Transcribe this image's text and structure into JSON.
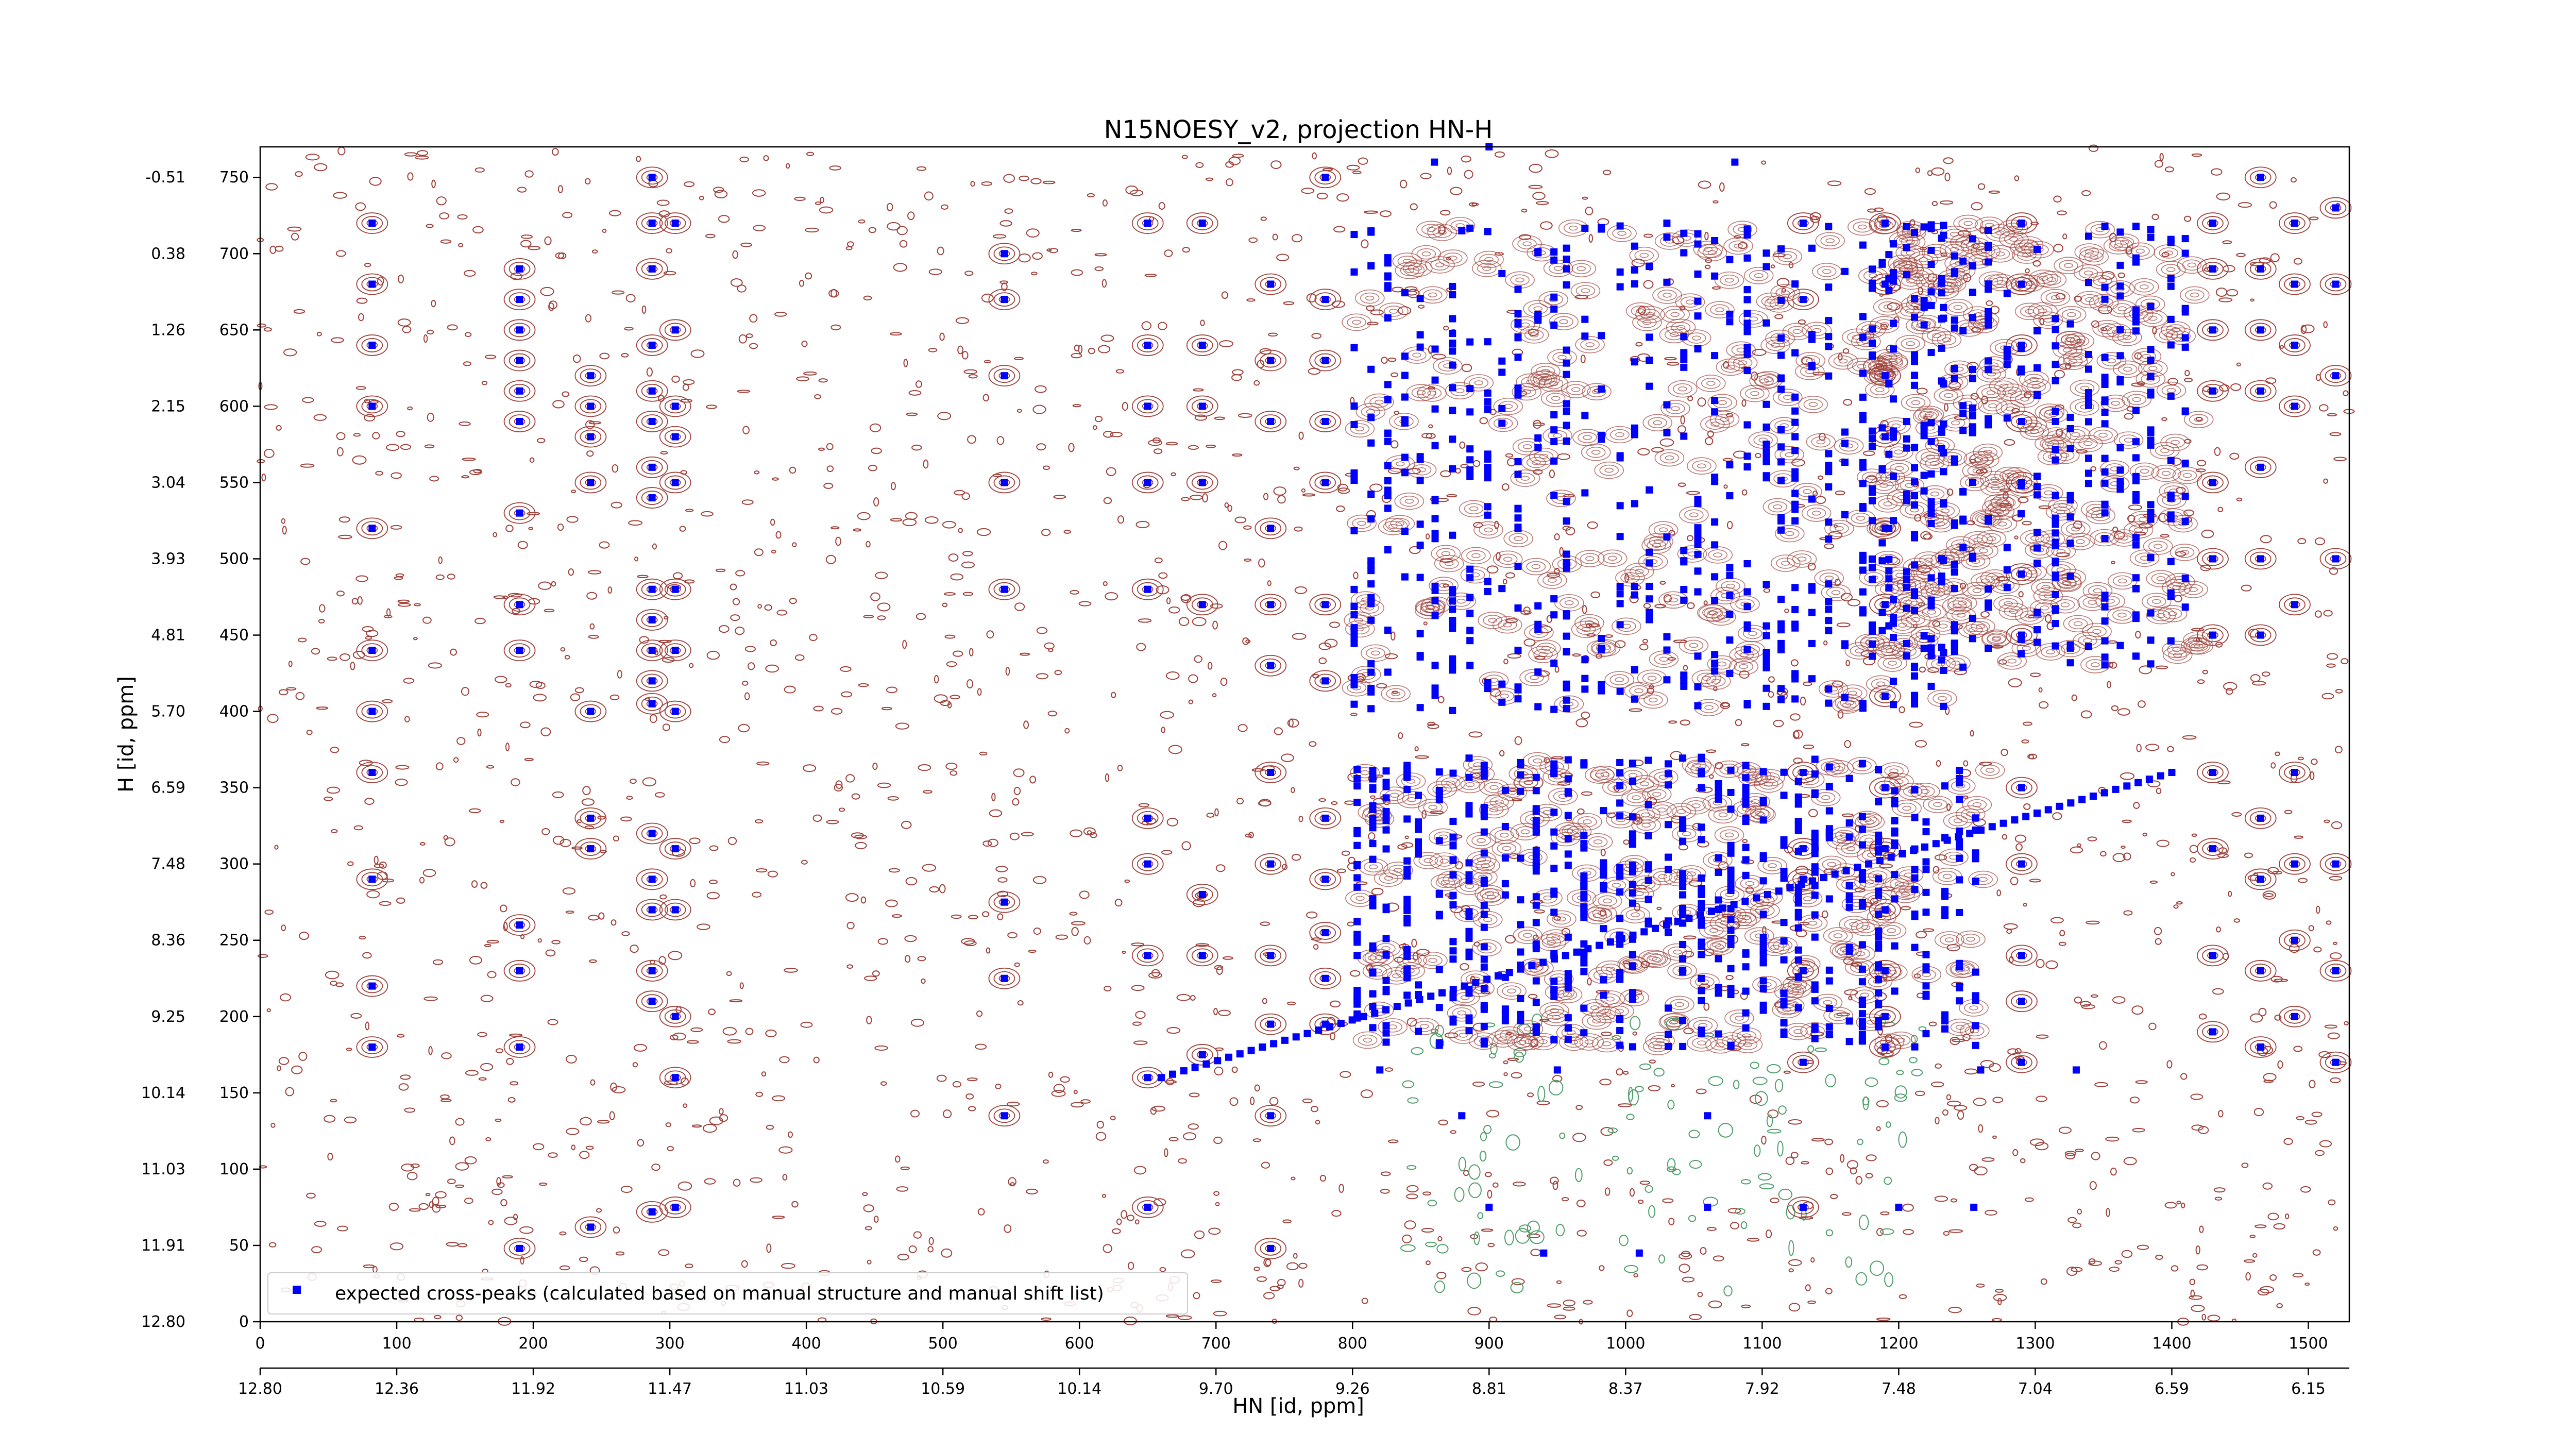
{
  "chart_data": {
    "type": "scatter",
    "title": "N15NOESY_v2, projection HN-H",
    "xlabel": "HN [id, ppm]",
    "ylabel": "H [id, ppm]",
    "xlim": [
      0,
      1530
    ],
    "ylim": [
      0,
      770
    ],
    "x_ticks_primary": [
      "0",
      "100",
      "200",
      "300",
      "400",
      "500",
      "600",
      "700",
      "800",
      "900",
      "1000",
      "1100",
      "1200",
      "1300",
      "1400",
      "1500"
    ],
    "x_ticks_ppm": [
      "12.80",
      "12.36",
      "11.92",
      "11.47",
      "11.03",
      "10.59",
      "10.14",
      "9.70",
      "9.26",
      "8.81",
      "8.37",
      "7.92",
      "7.48",
      "7.04",
      "6.59",
      "6.15"
    ],
    "y_ticks_primary": [
      "0",
      "50",
      "100",
      "150",
      "200",
      "250",
      "300",
      "350",
      "400",
      "450",
      "500",
      "550",
      "600",
      "650",
      "700",
      "750"
    ],
    "y_ticks_ppm": [
      "12.80",
      "11.91",
      "11.03",
      "10.14",
      "9.25",
      "8.36",
      "7.48",
      "6.59",
      "5.70",
      "4.81",
      "3.93",
      "3.04",
      "2.15",
      "1.26",
      "0.38",
      "-0.51"
    ],
    "grid": false,
    "legend_position": "lower-left",
    "series": [
      {
        "name": "expected cross-peaks (calculated based on manual structure and manual shift list)",
        "color": "#0000ff",
        "marker": "square",
        "columns": [
          {
            "x": 82,
            "y": [
              720,
              680,
              640,
              600,
              520,
              440,
              400,
              360,
              290,
              220,
              180
            ]
          },
          {
            "x": 190,
            "y": [
              690,
              670,
              650,
              630,
              610,
              590,
              530,
              470,
              440,
              260,
              230,
              180,
              48
            ]
          },
          {
            "x": 242,
            "y": [
              620,
              600,
              580,
              550,
              400,
              330,
              310,
              62
            ]
          },
          {
            "x": 287,
            "y": [
              750,
              720,
              690,
              640,
              610,
              590,
              560,
              540,
              480,
              460,
              440,
              420,
              405,
              320,
              290,
              270,
              230,
              210,
              72
            ]
          },
          {
            "x": 304,
            "y": [
              720,
              650,
              600,
              580,
              550,
              480,
              440,
              400,
              310,
              270,
              200,
              160,
              75
            ]
          },
          {
            "x": 545,
            "y": [
              700,
              670,
              620,
              550,
              480,
              275,
              225,
              135
            ]
          },
          {
            "x": 650,
            "y": [
              720,
              640,
              600,
              550,
              480,
              330,
              300,
              240,
              160,
              75
            ]
          },
          {
            "x": 690,
            "y": [
              720,
              640,
              600,
              550,
              470,
              280,
              240,
              175
            ]
          },
          {
            "x": 740,
            "y": [
              680,
              630,
              590,
              520,
              470,
              430,
              360,
              300,
              240,
              195,
              135,
              48
            ]
          },
          {
            "x": 780,
            "y": [
              750,
              670,
              630,
              590,
              550,
              470,
              420,
              330,
              290,
              255,
              225,
              195
            ]
          },
          {
            "x": 1130,
            "y": [
              720,
              670,
              360,
              310,
              290,
              230,
              170,
              75
            ]
          },
          {
            "x": 1190,
            "y": [
              720,
              680,
              620,
              580,
              520,
              470,
              410,
              350,
              310,
              270,
              230,
              200,
              180
            ]
          },
          {
            "x": 1290,
            "y": [
              720,
              680,
              640,
              590,
              550,
              490,
              450,
              350,
              300,
              240,
              210,
              170
            ]
          },
          {
            "x": 1430,
            "y": [
              720,
              690,
              650,
              610,
              550,
              500,
              450,
              360,
              310,
              240,
              190
            ]
          },
          {
            "x": 1465,
            "y": [
              750,
              690,
              650,
              610,
              560,
              500,
              450,
              330,
              290,
              230,
              180
            ]
          },
          {
            "x": 1490,
            "y": [
              720,
              680,
              640,
              600,
              470,
              360,
              300,
              250,
              200
            ]
          },
          {
            "x": 1520,
            "y": [
              730,
              680,
              620,
              500,
              300,
              230,
              170
            ]
          }
        ],
        "dense_regions": [
          {
            "x": [
              800,
              1260
            ],
            "y": [
              400,
              720
            ]
          },
          {
            "x": [
              800,
              1270
            ],
            "y": [
              180,
              370
            ]
          },
          {
            "x": [
              1180,
              1420
            ],
            "y": [
              430,
              720
            ]
          }
        ],
        "diagonal": {
          "from": [
            660,
            160
          ],
          "to": [
            1400,
            360
          ]
        },
        "isolated": [
          [
            820,
            165
          ],
          [
            900,
            75
          ],
          [
            880,
            135
          ],
          [
            940,
            45
          ],
          [
            950,
            165
          ],
          [
            1010,
            45
          ],
          [
            1060,
            75
          ],
          [
            1060,
            135
          ],
          [
            1260,
            165
          ],
          [
            1330,
            165
          ],
          [
            1255,
            75
          ],
          [
            1200,
            75
          ],
          [
            880,
            715
          ],
          [
            860,
            760
          ],
          [
            1080,
            760
          ],
          [
            900,
            770
          ]
        ]
      }
    ],
    "contour_colors": {
      "positive": "#a0413a",
      "negative": "#4f9f6a"
    }
  }
}
